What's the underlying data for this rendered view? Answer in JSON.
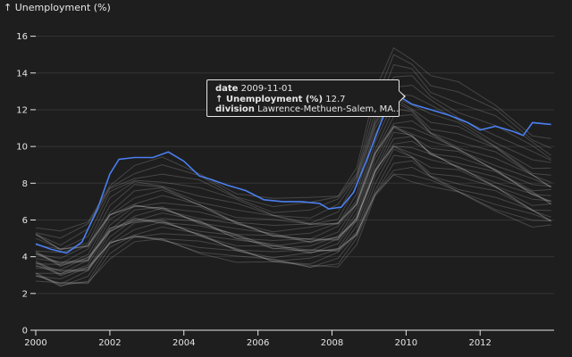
{
  "chart_data": {
    "type": "line",
    "ylabel": "↑ Unemployment (%)",
    "xlim": [
      "2000-01-01",
      "2013-12-31"
    ],
    "ylim": [
      0,
      17
    ],
    "x_ticks": [
      "2000",
      "2002",
      "2004",
      "2006",
      "2008",
      "2010",
      "2012"
    ],
    "y_ticks": [
      0,
      2,
      4,
      6,
      8,
      10,
      12,
      14,
      16
    ],
    "grid": "horizontal",
    "colors": {
      "highlight": "#4a7ff0",
      "others": "#d8d8d8",
      "background": "#1e1e1e"
    },
    "highlight": {
      "name": "Lawrence-Methuen-Salem, MA",
      "points": [
        [
          "2000-01-01",
          4.7
        ],
        [
          "2000-06-01",
          4.4
        ],
        [
          "2000-11-01",
          4.2
        ],
        [
          "2001-04-01",
          4.8
        ],
        [
          "2001-09-01",
          6.6
        ],
        [
          "2002-01-01",
          8.5
        ],
        [
          "2002-04-01",
          9.3
        ],
        [
          "2002-09-01",
          9.4
        ],
        [
          "2003-03-01",
          9.4
        ],
        [
          "2003-08-01",
          9.7
        ],
        [
          "2004-01-01",
          9.2
        ],
        [
          "2004-06-01",
          8.4
        ],
        [
          "2004-10-01",
          8.2
        ],
        [
          "2005-03-01",
          7.9
        ],
        [
          "2005-09-01",
          7.6
        ],
        [
          "2006-03-01",
          7.1
        ],
        [
          "2006-09-01",
          7.0
        ],
        [
          "2007-03-01",
          7.0
        ],
        [
          "2007-09-01",
          6.9
        ],
        [
          "2007-12-01",
          6.6
        ],
        [
          "2008-04-01",
          6.7
        ],
        [
          "2008-08-01",
          7.5
        ],
        [
          "2009-01-01",
          9.6
        ],
        [
          "2009-06-01",
          11.8
        ],
        [
          "2009-11-01",
          12.7
        ],
        [
          "2010-03-01",
          12.3
        ],
        [
          "2010-09-01",
          12.0
        ],
        [
          "2011-03-01",
          11.7
        ],
        [
          "2011-09-01",
          11.3
        ],
        [
          "2012-01-01",
          10.9
        ],
        [
          "2012-06-01",
          11.1
        ],
        [
          "2012-12-01",
          10.8
        ],
        [
          "2013-03-01",
          10.6
        ],
        [
          "2013-06-01",
          11.3
        ],
        [
          "2013-12-01",
          11.2
        ]
      ]
    },
    "others_profile": {
      "x": [
        "2000-01-01",
        "2000-09-01",
        "2001-06-01",
        "2002-01-01",
        "2002-09-01",
        "2003-06-01",
        "2004-06-01",
        "2005-06-01",
        "2006-06-01",
        "2007-06-01",
        "2008-03-01",
        "2008-09-01",
        "2009-03-01",
        "2009-09-01",
        "2010-03-01",
        "2010-09-01",
        "2011-06-01",
        "2012-06-01",
        "2013-06-01",
        "2013-12-01"
      ],
      "base": [
        3.6,
        3.2,
        3.6,
        5.3,
        6.0,
        6.1,
        5.6,
        5.0,
        4.6,
        4.5,
        4.8,
        6.0,
        8.8,
        10.5,
        10.3,
        9.6,
        9.1,
        8.3,
        7.3,
        7.0
      ],
      "offsets": [
        -0.45,
        -0.4,
        -0.35,
        -0.3,
        -0.25,
        -0.2,
        -0.15,
        -0.1,
        -0.06,
        -0.03,
        0,
        0.03,
        0.06,
        0.1,
        0.14,
        0.18,
        0.22,
        0.27,
        0.32,
        0.38,
        0.44,
        0.5,
        0.58,
        0.66,
        0.75,
        0.85,
        0.95,
        1.05
      ],
      "count": 28
    },
    "tooltip": {
      "date_label": "date",
      "date": "2009-11-01",
      "value_label": "↑ Unemployment (%)",
      "value": "12.7",
      "division_label": "division",
      "division": "Lawrence-Methuen-Salem, MA..."
    }
  }
}
